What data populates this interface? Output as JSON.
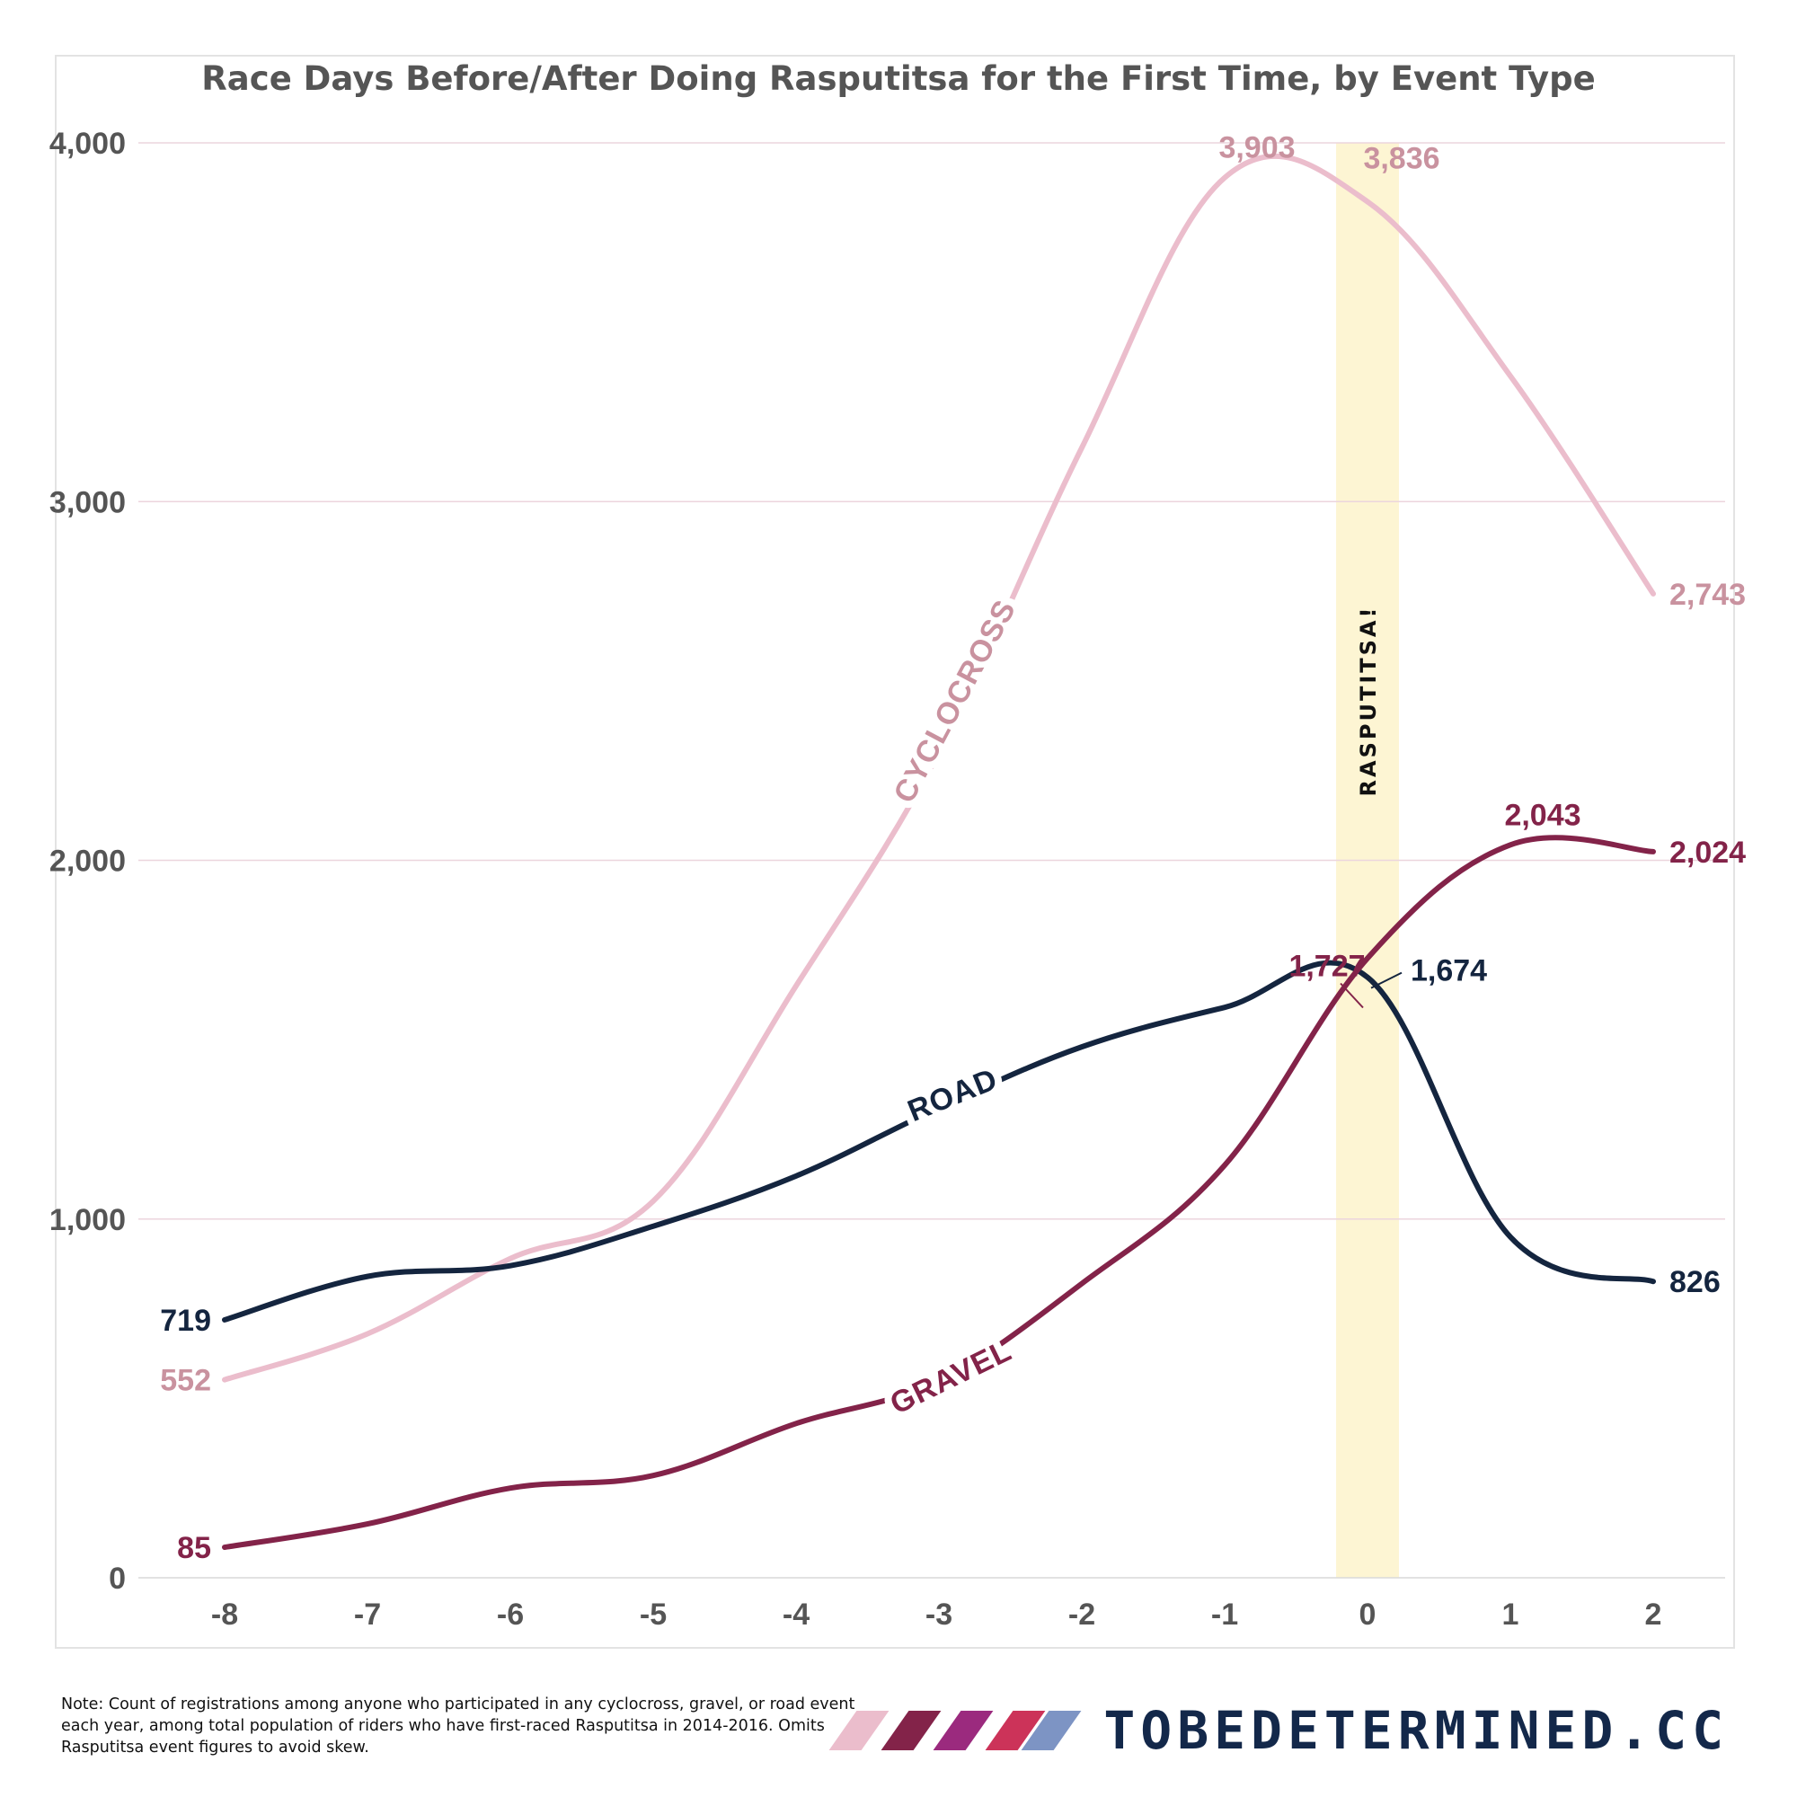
{
  "chart_data": {
    "type": "line",
    "title": "Race Days Before/After Doing Rasputitsa for the First Time, by Event Type",
    "xlabel": "",
    "ylabel": "",
    "x": [
      -8,
      -7,
      -6,
      -5,
      -4,
      -3,
      -2,
      -1,
      0,
      1,
      2
    ],
    "x_tick_labels": [
      "-8",
      "-7",
      "-6",
      "-5",
      "-4",
      "-3",
      "-2",
      "-1",
      "0",
      "1",
      "2"
    ],
    "xlim": [
      -8.6,
      2.5
    ],
    "ylim": [
      0,
      4000
    ],
    "y_ticks": [
      0,
      1000,
      2000,
      3000,
      4000
    ],
    "y_tick_labels": [
      "0",
      "1,000",
      "2,000",
      "3,000",
      "4,000"
    ],
    "grid": "horizontal",
    "highlight_band": {
      "x_from": -0.22,
      "x_to": 0.22,
      "label": "RASPUTITSA!",
      "color": "#fdf5d3"
    },
    "series": [
      {
        "name": "CYCLOCROSS",
        "color": "#ebbdcc",
        "label_color": "#c9929f",
        "values": [
          552,
          680,
          890,
          1050,
          1650,
          2300,
          3150,
          3903,
          3836,
          3350,
          2743
        ],
        "data_labels": [
          {
            "x": -8,
            "text": "552",
            "position": "left"
          },
          {
            "x": -1,
            "text": "3,903",
            "position": "above"
          },
          {
            "x": 0,
            "text": "3,836",
            "position": "above-right"
          },
          {
            "x": 2,
            "text": "2,743",
            "position": "right"
          }
        ]
      },
      {
        "name": "ROAD",
        "color": "#14253f",
        "label_color": "#14253f",
        "values": [
          719,
          840,
          870,
          980,
          1120,
          1310,
          1480,
          1590,
          1674,
          950,
          826
        ],
        "data_labels": [
          {
            "x": -8,
            "text": "719",
            "position": "left"
          },
          {
            "x": 0,
            "text": "1,674",
            "position": "right-leader"
          },
          {
            "x": 2,
            "text": "826",
            "position": "right"
          }
        ]
      },
      {
        "name": "GRAVEL",
        "color": "#832349",
        "label_color": "#832349",
        "values": [
          85,
          150,
          250,
          285,
          430,
          550,
          820,
          1150,
          1727,
          2043,
          2024
        ],
        "data_labels": [
          {
            "x": -8,
            "text": "85",
            "position": "left"
          },
          {
            "x": 0,
            "text": "1,727",
            "position": "above-left-leader"
          },
          {
            "x": 1,
            "text": "2,043",
            "position": "above"
          },
          {
            "x": 2,
            "text": "2,024",
            "position": "right"
          }
        ]
      }
    ]
  },
  "footer": {
    "note": "Note: Count of registrations among anyone who participated in any cyclocross, gravel, or road event each year, among total population of riders who have first-raced Rasputitsa in 2014-2016. Omits Rasputitsa event figures to avoid skew.",
    "brand": "TOBEDETERMINED.CC",
    "brand_stripe_colors": [
      "#ebbdcc",
      "#832349",
      "#9b2a7e",
      "#cc3359",
      "#7d94c4"
    ]
  }
}
